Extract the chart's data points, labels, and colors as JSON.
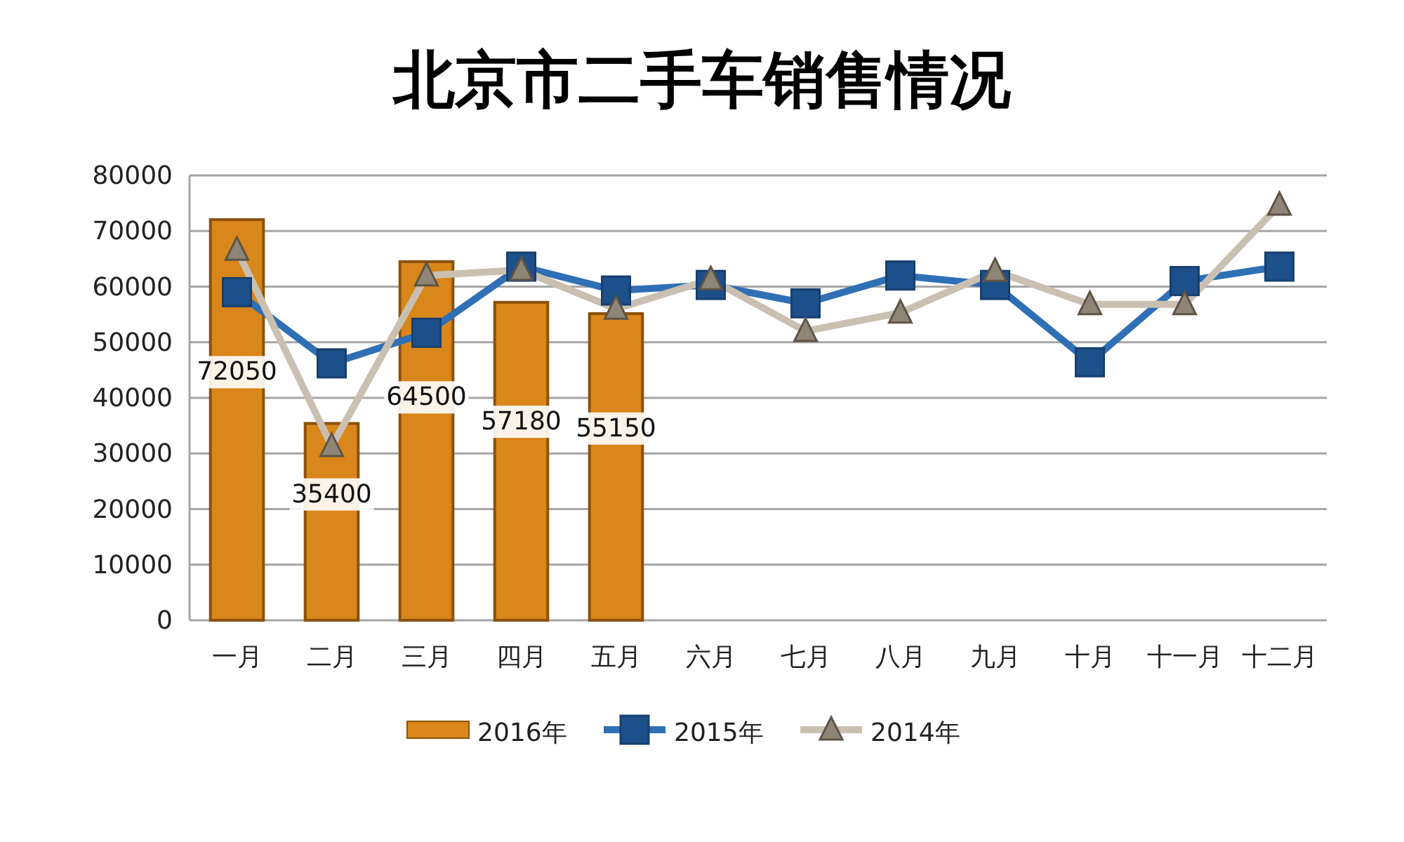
{
  "chart_data": {
    "type": "bar",
    "title": "北京市二手车销售情况",
    "categories": [
      "一月",
      "二月",
      "三月",
      "四月",
      "五月",
      "六月",
      "七月",
      "八月",
      "九月",
      "十月",
      "十一月",
      "十二月"
    ],
    "ylim": [
      0,
      80000
    ],
    "yticks": [
      0,
      10000,
      20000,
      30000,
      40000,
      50000,
      60000,
      70000,
      80000
    ],
    "grid": "y",
    "legend": "bottom",
    "series": [
      {
        "name": "2016年",
        "color": "#d9861a",
        "data_labels": true,
        "values": [
          72050,
          35400,
          64500,
          57180,
          55150,
          null,
          null,
          null,
          null,
          null,
          null,
          null
        ]
      },
      {
        "name": "2015年",
        "type": "line",
        "color": "#2f6fb5",
        "marker": "square",
        "values": [
          59000,
          46200,
          51700,
          63600,
          59300,
          60300,
          57000,
          62000,
          60300,
          46400,
          61000,
          63600
        ]
      },
      {
        "name": "2014年",
        "type": "line",
        "color": "#c9c0b2",
        "marker": "triangle",
        "values": [
          66600,
          31300,
          62000,
          63000,
          56000,
          61300,
          52000,
          55300,
          62800,
          56800,
          56800,
          74700
        ]
      }
    ]
  }
}
